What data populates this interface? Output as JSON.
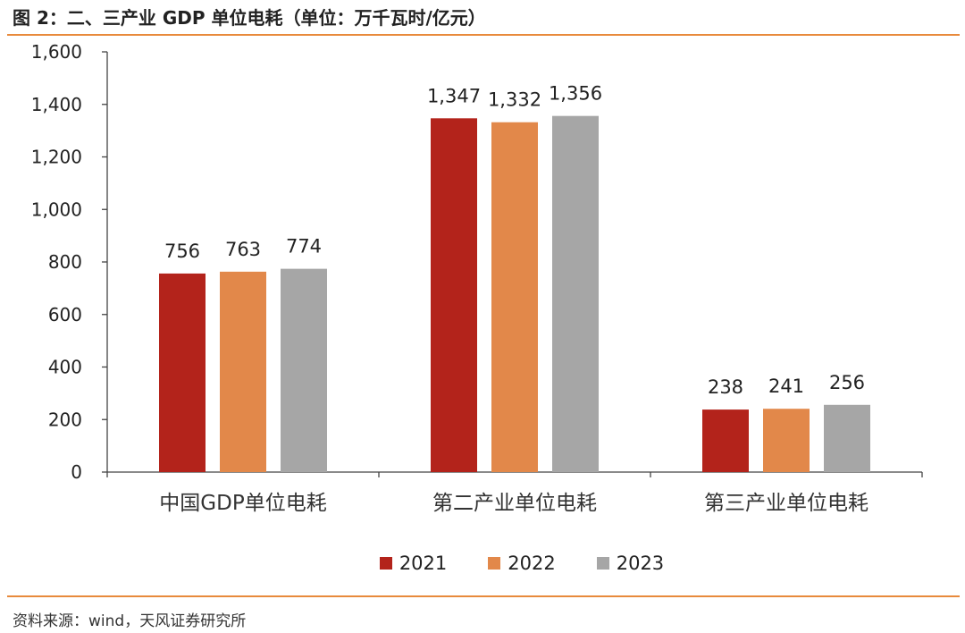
{
  "title": "图 2：二、三产业 GDP 单位电耗（单位：万千瓦时/亿元）",
  "source": "资料来源：wind，天风证券研究所",
  "chart_data": {
    "type": "bar",
    "categories": [
      "中国GDP单位电耗",
      "第二产业单位电耗",
      "第三产业单位电耗"
    ],
    "series": [
      {
        "name": "2021",
        "color": "#b3231b",
        "values": [
          756,
          1347,
          238
        ],
        "labels": [
          "756",
          "1,347",
          "238"
        ]
      },
      {
        "name": "2022",
        "color": "#e2884a",
        "values": [
          763,
          1332,
          241
        ],
        "labels": [
          "763",
          "1,332",
          "241"
        ]
      },
      {
        "name": "2023",
        "color": "#a6a6a6",
        "values": [
          774,
          1356,
          256
        ],
        "labels": [
          "774",
          "1,356",
          "256"
        ]
      }
    ],
    "ylim": [
      0,
      1600
    ],
    "yticks": [
      0,
      200,
      400,
      600,
      800,
      1000,
      1200,
      1400,
      1600
    ],
    "ytick_labels": [
      "0",
      "200",
      "400",
      "600",
      "800",
      "1,000",
      "1,200",
      "1,400",
      "1,600"
    ],
    "legend_position": "bottom-center",
    "grid": false
  }
}
